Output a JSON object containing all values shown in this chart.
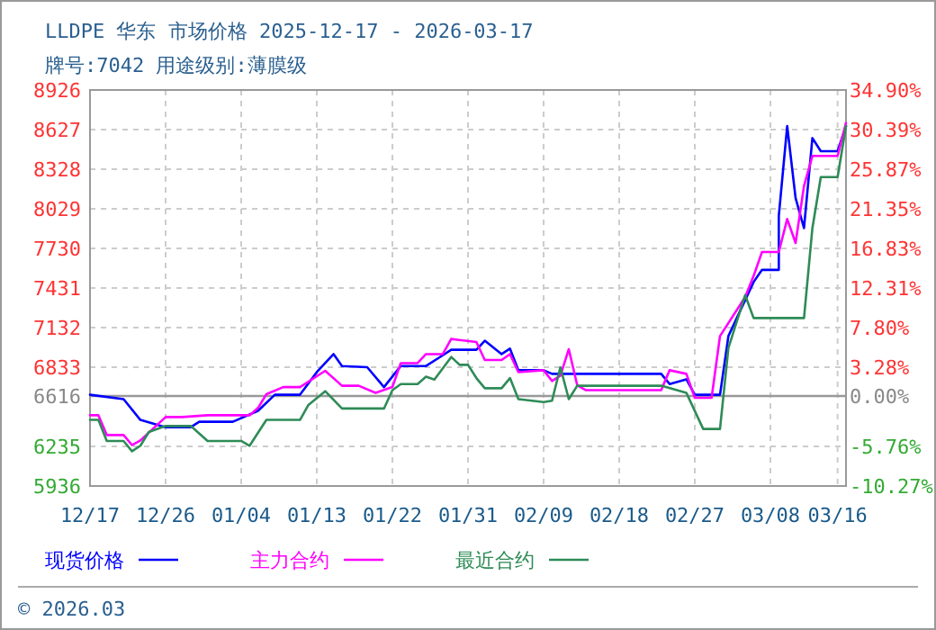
{
  "chart_data": {
    "type": "line",
    "title": "LLDPE 华东 市场价格 2025-12-17 - 2026-03-17",
    "subtitle": "牌号:7042 用途级别:薄膜级",
    "xlim": [
      "2025-12-17",
      "2026-03-17"
    ],
    "xticks": [
      {
        "value": "2025-12-17",
        "label": "12/17"
      },
      {
        "value": "2025-12-26",
        "label": "12/26"
      },
      {
        "value": "2026-01-04",
        "label": "01/04"
      },
      {
        "value": "2026-01-13",
        "label": "01/13"
      },
      {
        "value": "2026-01-22",
        "label": "01/22"
      },
      {
        "value": "2026-01-31",
        "label": "01/31"
      },
      {
        "value": "2026-02-09",
        "label": "02/09"
      },
      {
        "value": "2026-02-18",
        "label": "02/18"
      },
      {
        "value": "2026-02-27",
        "label": "02/27"
      },
      {
        "value": "2026-03-08",
        "label": "03/08"
      },
      {
        "value": "2026-03-16",
        "label": "03/16"
      }
    ],
    "ylim": [
      5936,
      8926
    ],
    "yticks": [
      5936,
      6235,
      6616,
      6833,
      7132,
      7431,
      7730,
      8029,
      8328,
      8627,
      8926
    ],
    "y2lim": [
      -10.27,
      34.9
    ],
    "y2ticks": [
      {
        "value": -10.27,
        "label": "-10.27%"
      },
      {
        "value": -5.76,
        "label": "-5.76%"
      },
      {
        "value": 0,
        "label": "0.00%"
      },
      {
        "value": 3.28,
        "label": "3.28%"
      },
      {
        "value": 7.8,
        "label": "7.80%"
      },
      {
        "value": 12.31,
        "label": "12.31%"
      },
      {
        "value": 16.83,
        "label": "16.83%"
      },
      {
        "value": 21.35,
        "label": "21.35%"
      },
      {
        "value": 25.87,
        "label": "25.87%"
      },
      {
        "value": 30.39,
        "label": "30.39%"
      },
      {
        "value": 34.9,
        "label": "34.90%"
      }
    ],
    "ref_lines": [
      {
        "axis": "y",
        "value": 6616,
        "color": "#999999"
      }
    ],
    "grid": true,
    "legend": "bottom",
    "line_style": "solid",
    "annotations": [
      "© 2026.03"
    ],
    "series": [
      {
        "name": "现货价格",
        "color": "#0000ff",
        "x": [
          "2025-12-17",
          "2025-12-21",
          "2025-12-23",
          "2025-12-26",
          "2025-12-29",
          "2025-12-30",
          "2026-01-03",
          "2026-01-06",
          "2026-01-08",
          "2026-01-11",
          "2026-01-13",
          "2026-01-15",
          "2026-01-16",
          "2026-01-19",
          "2026-01-21",
          "2026-01-23",
          "2026-01-26",
          "2026-01-28",
          "2026-01-29",
          "2026-02-01",
          "2026-02-02",
          "2026-02-04",
          "2026-02-05",
          "2026-02-06",
          "2026-02-09",
          "2026-02-10",
          "2026-02-23",
          "2026-02-24",
          "2026-02-26",
          "2026-02-27",
          "2026-03-02",
          "2026-03-03",
          "2026-03-06",
          "2026-03-07",
          "2026-03-09",
          "2026-03-09",
          "2026-03-10",
          "2026-03-11",
          "2026-03-12",
          "2026-03-13",
          "2026-03-14",
          "2026-03-16",
          "2026-03-17"
        ],
        "values": [
          6625,
          6592,
          6435,
          6380,
          6380,
          6421,
          6421,
          6503,
          6625,
          6625,
          6796,
          6932,
          6842,
          6833,
          6683,
          6842,
          6842,
          6923,
          6965,
          6965,
          7033,
          6932,
          6973,
          6810,
          6810,
          6783,
          6783,
          6706,
          6742,
          6625,
          6625,
          7068,
          7476,
          7568,
          7568,
          7975,
          8654,
          8110,
          7883,
          8563,
          8464,
          8464,
          8654
        ]
      },
      {
        "name": "主力合约",
        "color": "#ff00ff",
        "x": [
          "2025-12-17",
          "2025-12-18",
          "2025-12-19",
          "2025-12-21",
          "2025-12-22",
          "2025-12-23",
          "2025-12-26",
          "2025-12-28",
          "2025-12-31",
          "2026-01-05",
          "2026-01-06",
          "2026-01-07",
          "2026-01-09",
          "2026-01-11",
          "2026-01-14",
          "2026-01-16",
          "2026-01-18",
          "2026-01-20",
          "2026-01-22",
          "2026-01-23",
          "2026-01-25",
          "2026-01-26",
          "2026-01-28",
          "2026-01-29",
          "2026-02-01",
          "2026-02-02",
          "2026-02-04",
          "2026-02-05",
          "2026-02-06",
          "2026-02-09",
          "2026-02-10",
          "2026-02-11",
          "2026-02-12",
          "2026-02-13",
          "2026-02-14",
          "2026-02-23",
          "2026-02-24",
          "2026-02-26",
          "2026-02-27",
          "2026-03-01",
          "2026-03-02",
          "2026-03-05",
          "2026-03-06",
          "2026-03-07",
          "2026-03-09",
          "2026-03-10",
          "2026-03-11",
          "2026-03-12",
          "2026-03-13",
          "2026-03-16",
          "2026-03-17"
        ],
        "values": [
          6470,
          6470,
          6321,
          6321,
          6245,
          6280,
          6457,
          6457,
          6470,
          6470,
          6525,
          6629,
          6683,
          6683,
          6806,
          6693,
          6693,
          6639,
          6683,
          6864,
          6864,
          6932,
          6932,
          7046,
          7023,
          6887,
          6887,
          6932,
          6796,
          6810,
          6729,
          6769,
          6969,
          6697,
          6660,
          6660,
          6810,
          6783,
          6602,
          6602,
          7068,
          7363,
          7522,
          7703,
          7703,
          7952,
          7771,
          8201,
          8428,
          8428,
          8677
        ]
      },
      {
        "name": "最近合约",
        "color": "#2e8b57",
        "x": [
          "2025-12-17",
          "2025-12-18",
          "2025-12-19",
          "2025-12-21",
          "2025-12-22",
          "2025-12-23",
          "2025-12-24",
          "2025-12-26",
          "2025-12-29",
          "2025-12-31",
          "2026-01-04",
          "2026-01-05",
          "2026-01-07",
          "2026-01-11",
          "2026-01-12",
          "2026-01-14",
          "2026-01-16",
          "2026-01-21",
          "2026-01-22",
          "2026-01-23",
          "2026-01-25",
          "2026-01-26",
          "2026-01-27",
          "2026-01-29",
          "2026-01-30",
          "2026-01-31",
          "2026-02-01",
          "2026-02-02",
          "2026-02-04",
          "2026-02-05",
          "2026-02-06",
          "2026-02-09",
          "2026-02-10",
          "2026-02-11",
          "2026-02-12",
          "2026-02-13",
          "2026-02-23",
          "2026-02-26",
          "2026-02-28",
          "2026-03-02",
          "2026-03-03",
          "2026-03-05",
          "2026-03-06",
          "2026-03-12",
          "2026-03-13",
          "2026-03-14",
          "2026-03-16",
          "2026-03-17"
        ],
        "values": [
          6435,
          6435,
          6276,
          6276,
          6198,
          6240,
          6344,
          6389,
          6389,
          6276,
          6276,
          6240,
          6435,
          6435,
          6548,
          6652,
          6521,
          6521,
          6660,
          6706,
          6706,
          6761,
          6740,
          6910,
          6851,
          6851,
          6751,
          6674,
          6674,
          6751,
          6592,
          6570,
          6580,
          6833,
          6592,
          6693,
          6693,
          6639,
          6367,
          6367,
          6978,
          7377,
          7204,
          7204,
          7883,
          8269,
          8269,
          8654
        ]
      }
    ]
  }
}
